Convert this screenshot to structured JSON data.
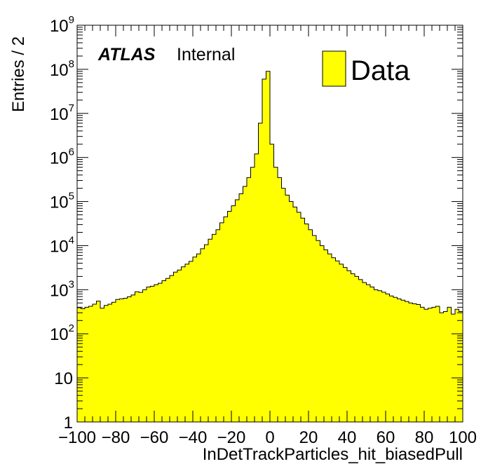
{
  "chart_data": {
    "type": "bar",
    "xlabel": "InDetTrackParticles_hit_biasedPull",
    "ylabel": "Entries / 2",
    "xlim": [
      -100,
      100
    ],
    "ylim": [
      1,
      1000000000
    ],
    "yscale": "log",
    "bin_width": 2,
    "x_ticks": [
      -100,
      -80,
      -60,
      -40,
      -20,
      0,
      20,
      40,
      60,
      80,
      100
    ],
    "x_tick_labels": [
      "−100",
      "−80",
      "−60",
      "−40",
      "−20",
      "0",
      "20",
      "40",
      "60",
      "80",
      "100"
    ],
    "y_ticks": [
      {
        "value": 1,
        "base": "1",
        "exp": ""
      },
      {
        "value": 10,
        "base": "10",
        "exp": ""
      },
      {
        "value": 100,
        "base": "10",
        "exp": "2"
      },
      {
        "value": 1000,
        "base": "10",
        "exp": "3"
      },
      {
        "value": 10000,
        "base": "10",
        "exp": "4"
      },
      {
        "value": 100000,
        "base": "10",
        "exp": "5"
      },
      {
        "value": 1000000,
        "base": "10",
        "exp": "6"
      },
      {
        "value": 10000000,
        "base": "10",
        "exp": "7"
      },
      {
        "value": 100000000,
        "base": "10",
        "exp": "8"
      },
      {
        "value": 1000000000,
        "base": "10",
        "exp": "9"
      }
    ],
    "series": [
      {
        "name": "Data",
        "color": "#ffff00",
        "bin_low_edges": [
          -100,
          -98,
          -96,
          -94,
          -92,
          -90,
          -88,
          -86,
          -84,
          -82,
          -80,
          -78,
          -76,
          -74,
          -72,
          -70,
          -68,
          -66,
          -64,
          -62,
          -60,
          -58,
          -56,
          -54,
          -52,
          -50,
          -48,
          -46,
          -44,
          -42,
          -40,
          -38,
          -36,
          -34,
          -32,
          -30,
          -28,
          -26,
          -24,
          -22,
          -20,
          -18,
          -16,
          -14,
          -12,
          -10,
          -8,
          -6,
          -4,
          -2,
          0,
          2,
          4,
          6,
          8,
          10,
          12,
          14,
          16,
          18,
          20,
          22,
          24,
          26,
          28,
          30,
          32,
          34,
          36,
          38,
          40,
          42,
          44,
          46,
          48,
          50,
          52,
          54,
          56,
          58,
          60,
          62,
          64,
          66,
          68,
          70,
          72,
          74,
          76,
          78,
          80,
          82,
          84,
          86,
          88,
          90,
          92,
          94,
          96,
          98
        ],
        "values": [
          390,
          370,
          400,
          420,
          470,
          550,
          380,
          440,
          470,
          520,
          600,
          620,
          640,
          690,
          760,
          900,
          870,
          1000,
          1150,
          1200,
          1300,
          1400,
          1600,
          1800,
          2100,
          2500,
          2800,
          3300,
          3800,
          4400,
          5500,
          6500,
          8500,
          10500,
          14000,
          18000,
          23000,
          33000,
          45000,
          60000,
          80000,
          110000,
          150000,
          220000,
          350000,
          600000,
          1200000,
          6000000,
          60000000,
          90000000,
          2000000,
          600000,
          350000,
          200000,
          140000,
          100000,
          75000,
          57000,
          42000,
          31000,
          23000,
          17000,
          13000,
          10000,
          8000,
          6500,
          5300,
          4500,
          3800,
          3200,
          2700,
          2300,
          2000,
          1700,
          1450,
          1300,
          1150,
          1000,
          950,
          880,
          800,
          720,
          670,
          620,
          580,
          540,
          500,
          480,
          460,
          400,
          360,
          380,
          400,
          420,
          300,
          320,
          400,
          280,
          360,
          320
        ]
      }
    ],
    "legend": "top-right",
    "grid": false
  },
  "annotations": {
    "experiment": "ATLAS",
    "status": "Internal"
  },
  "legend_label": "Data",
  "colors": {
    "fill": "#ffff00",
    "line": "#000000",
    "background": "#ffffff"
  }
}
